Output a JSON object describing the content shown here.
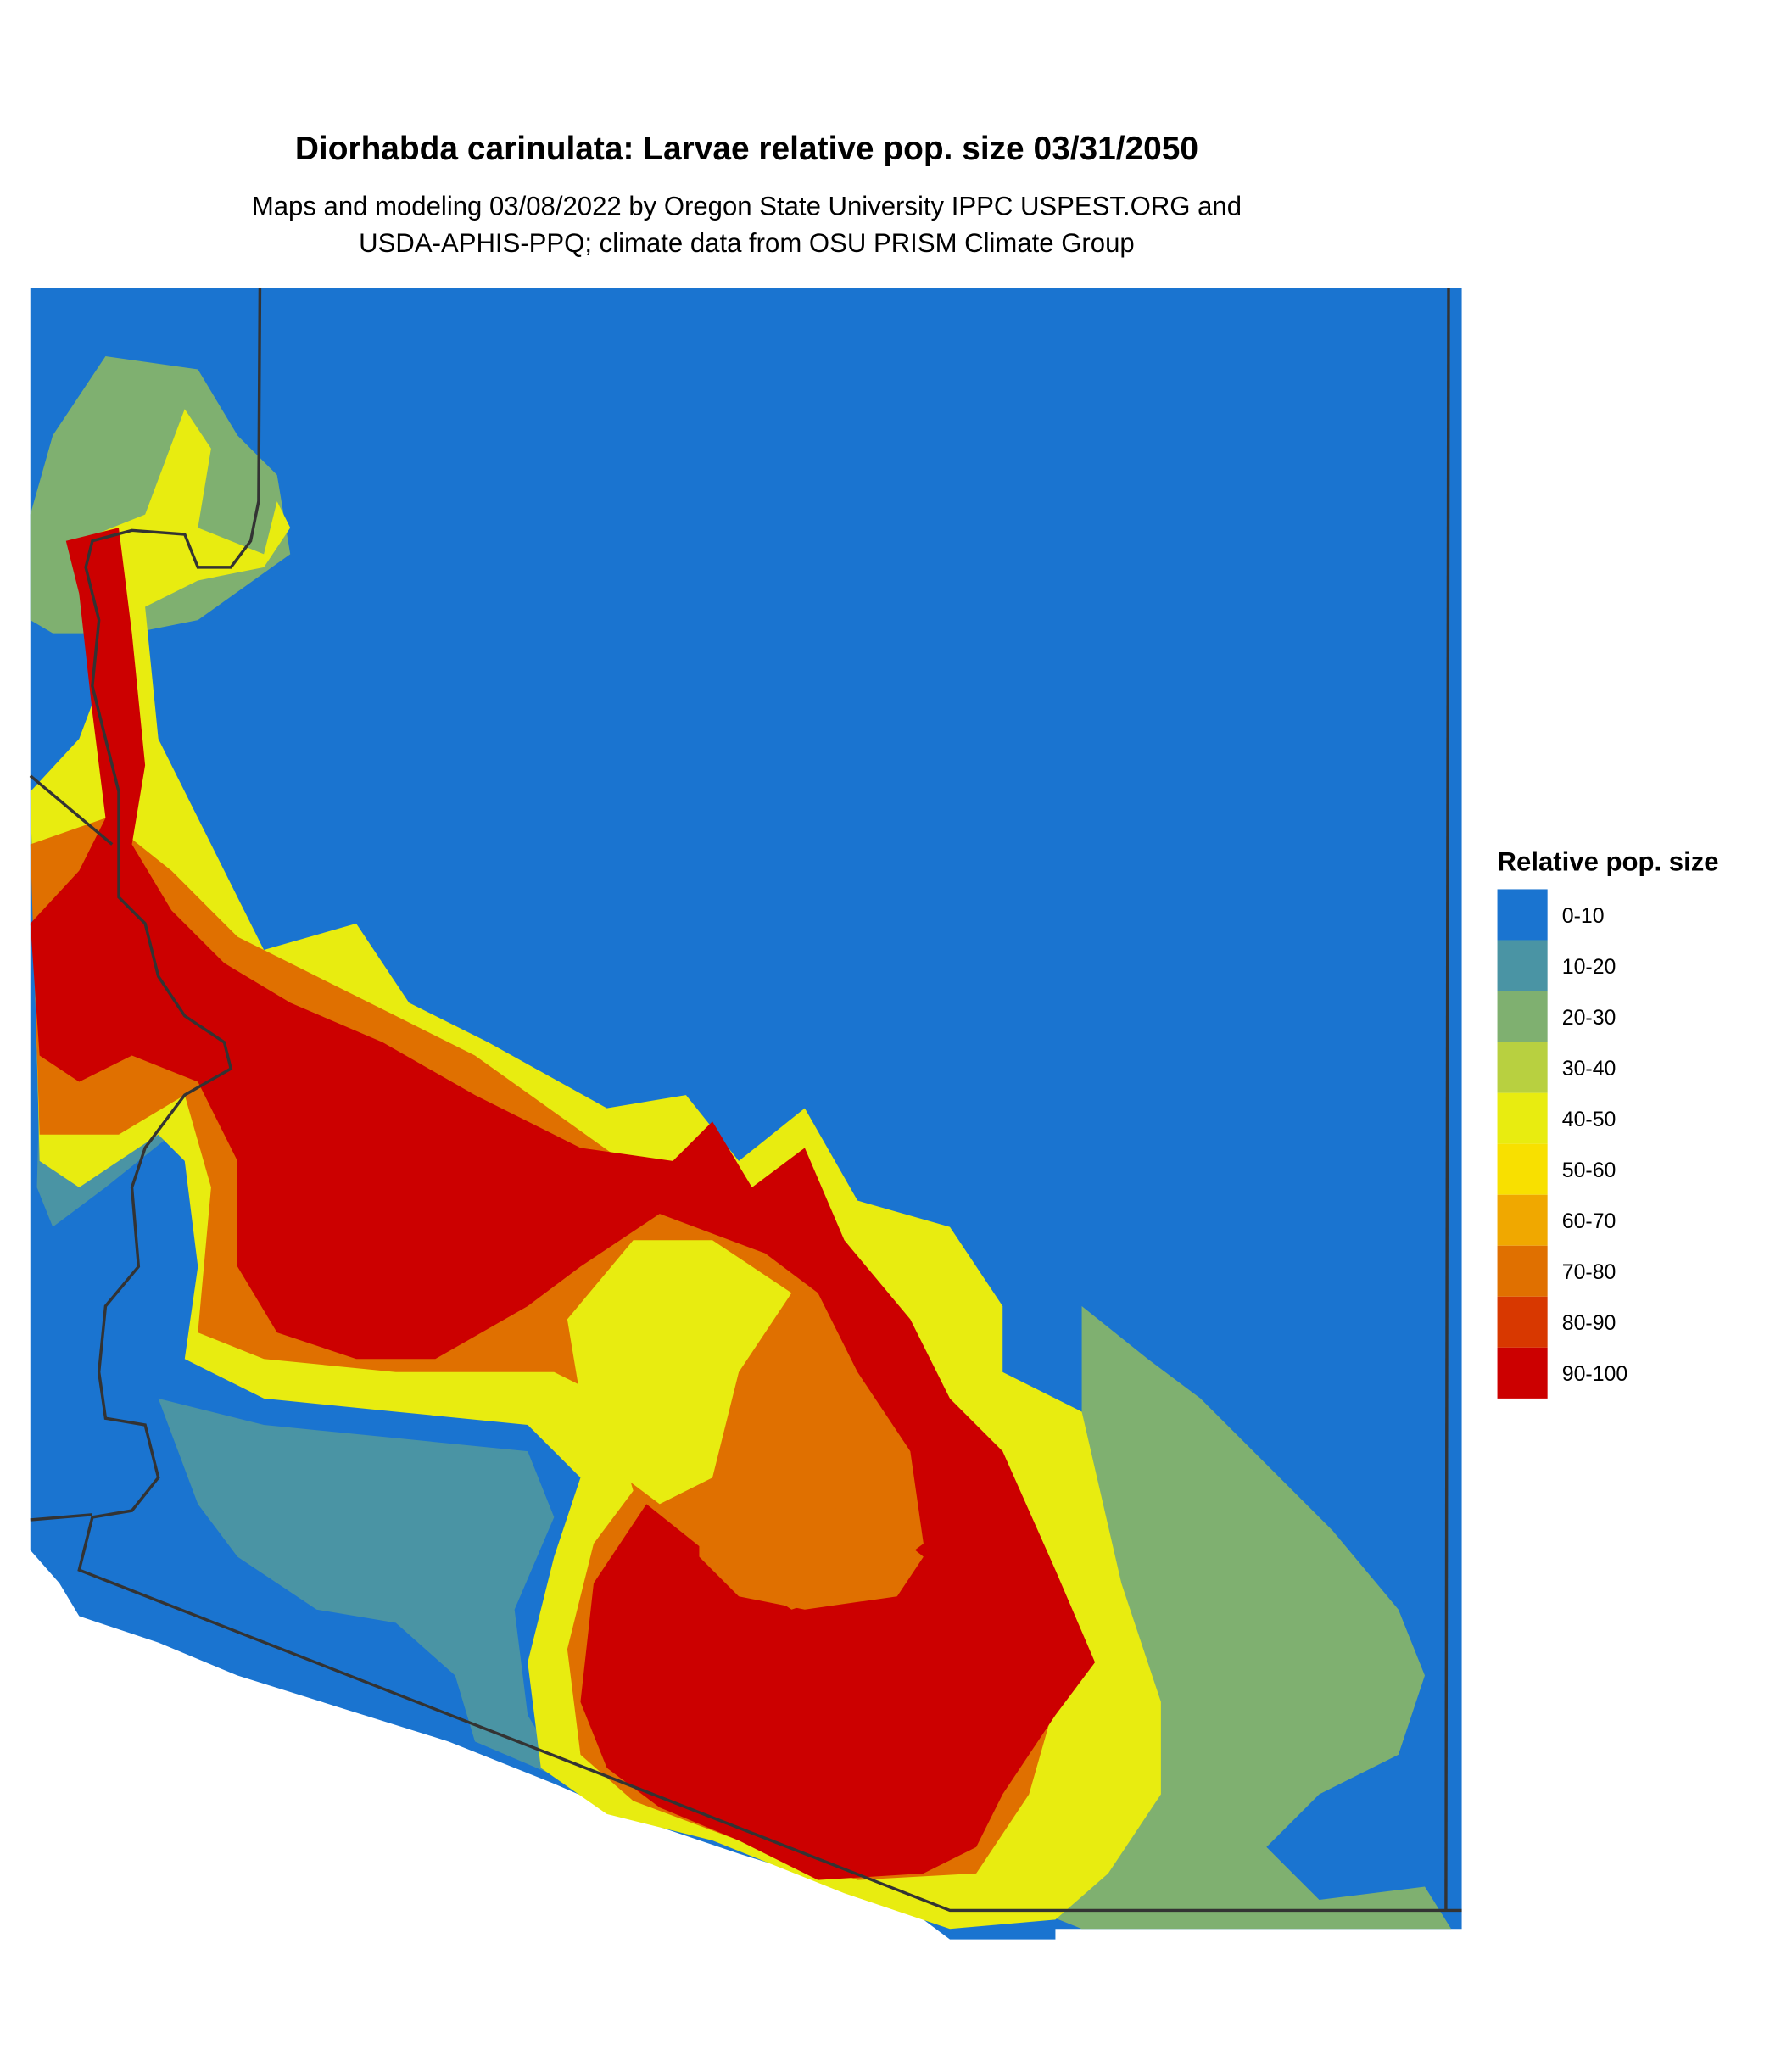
{
  "title": "Diorhabda carinulata: Larvae relative pop. size 03/31/2050",
  "subtitle_lines": [
    "Maps and modeling 03/08/2022 by Oregon State University IPPC USPEST.ORG and",
    "USDA-APHIS-PPQ; climate data from OSU PRISM Climate Group"
  ],
  "legend": {
    "title": "Relative pop. size",
    "items": [
      {
        "label": "0-10",
        "color": "#1a74d0"
      },
      {
        "label": "10-20",
        "color": "#4a94a4"
      },
      {
        "label": "20-30",
        "color": "#7fb070"
      },
      {
        "label": "30-40",
        "color": "#b8d040"
      },
      {
        "label": "40-50",
        "color": "#e8ec10"
      },
      {
        "label": "50-60",
        "color": "#f8e000"
      },
      {
        "label": "60-70",
        "color": "#f0a800"
      },
      {
        "label": "70-80",
        "color": "#e07000"
      },
      {
        "label": "80-90",
        "color": "#d83800"
      },
      {
        "label": "90-100",
        "color": "#cc0000"
      }
    ]
  }
}
